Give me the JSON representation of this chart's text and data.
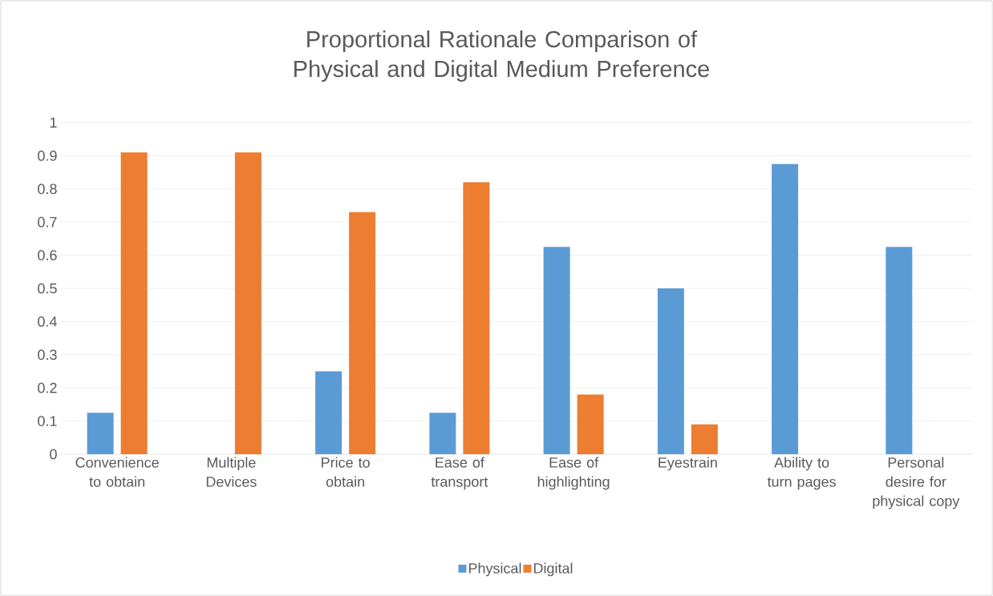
{
  "chart_data": {
    "type": "bar",
    "title": "Proportional Rationale Comparison of Physical and Digital Medium Preference",
    "categories": [
      "Convenience to obtain",
      "Multiple Devices",
      "Price to obtain",
      "Ease of transport",
      "Ease of highlighting",
      "Eyestrain",
      "Ability to turn pages",
      "Personal desire for physical copy"
    ],
    "series": [
      {
        "name": "Physical",
        "color": "#5b9bd5",
        "values": [
          0.125,
          0,
          0.25,
          0.125,
          0.625,
          0.5,
          0.875,
          0.625
        ]
      },
      {
        "name": "Digital",
        "color": "#ed7d31",
        "values": [
          0.91,
          0.91,
          0.73,
          0.82,
          0.18,
          0.09,
          0,
          0
        ]
      }
    ],
    "ylim": [
      0,
      1
    ],
    "yticks": [
      0,
      0.1,
      0.2,
      0.3,
      0.4,
      0.5,
      0.6,
      0.7,
      0.8,
      0.9,
      1
    ],
    "grid": "y",
    "legend": "bottom"
  }
}
